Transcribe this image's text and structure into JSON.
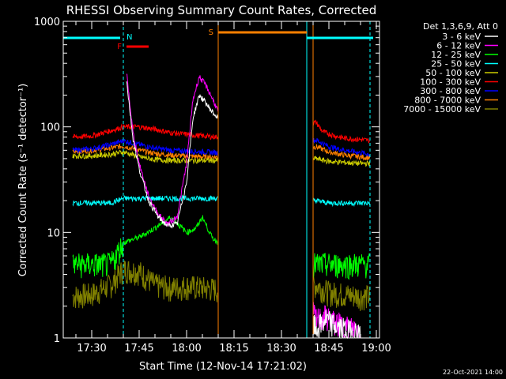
{
  "chart_data": {
    "type": "line",
    "title": "RHESSI Observing Summary Count Rates, Corrected",
    "xlabel": "Start Time (12-Nov-14 17:21:02)",
    "ylabel": "Corrected Count Rate (s⁻¹ detector⁻¹)",
    "yscale": "log",
    "ylim": [
      1,
      1000
    ],
    "xlim": [
      "17:21",
      "19:01"
    ],
    "x_ticks": [
      "17:30",
      "17:45",
      "18:00",
      "18:15",
      "18:30",
      "18:45",
      "19:00"
    ],
    "y_ticks": [
      "1",
      "10",
      "100",
      "1000"
    ],
    "legend_title": "Det 1,3,6,9, Att 0",
    "legend_position": "right",
    "footer_date": "22-Oct-2021 14:00",
    "annotations": [
      {
        "label": "N",
        "color": "#00ffff",
        "range": [
          "17:21",
          "17:39"
        ],
        "level": "top"
      },
      {
        "label": "N",
        "color": "#00ffff",
        "range": [
          "18:38",
          "18:59"
        ],
        "level": "top"
      },
      {
        "label": "F",
        "color": "#ff0000",
        "range": [
          "17:41",
          "17:48"
        ],
        "level": "upper"
      },
      {
        "label": "S",
        "color": "#ff8000",
        "range": [
          "18:10",
          "18:38"
        ],
        "level": "top"
      }
    ],
    "vlines": [
      {
        "time": "17:40",
        "color": "#00ffff",
        "style": "dashed"
      },
      {
        "time": "18:10",
        "color": "#ff8000",
        "style": "solid"
      },
      {
        "time": "18:38",
        "color": "#00ffff",
        "style": "solid"
      },
      {
        "time": "18:40",
        "color": "#ff8000",
        "style": "solid"
      },
      {
        "time": "18:58",
        "color": "#00ffff",
        "style": "dashed"
      }
    ],
    "gap": [
      "18:10",
      "18:40"
    ],
    "series": [
      {
        "name": "3 - 6 keV",
        "color": "#ffffff",
        "x": [
          "17:41",
          "17:43",
          "17:45",
          "17:48",
          "17:51",
          "17:54",
          "17:57",
          "18:00",
          "18:02",
          "18:04",
          "18:06",
          "18:08",
          "18:10",
          "18:41",
          "18:44",
          "18:47",
          "18:50",
          "18:55"
        ],
        "y": [
          280,
          80,
          40,
          20,
          14,
          11.5,
          12,
          30,
          120,
          200,
          170,
          140,
          120,
          1.2,
          1.5,
          1.3,
          1.2,
          1.1
        ]
      },
      {
        "name": "6 - 12 keV",
        "color": "#ff00ff",
        "x": [
          "17:41",
          "17:43",
          "17:45",
          "17:48",
          "17:51",
          "17:54",
          "17:57",
          "18:00",
          "18:02",
          "18:04",
          "18:06",
          "18:08",
          "18:10",
          "18:41",
          "18:44",
          "18:47",
          "18:50",
          "18:55"
        ],
        "y": [
          330,
          90,
          45,
          22,
          15,
          12,
          14,
          45,
          180,
          300,
          250,
          190,
          140,
          1.5,
          1.6,
          1.4,
          1.3,
          1.2
        ]
      },
      {
        "name": "12 - 25 keV",
        "color": "#00ff00",
        "x": [
          "17:24",
          "17:30",
          "17:36",
          "17:40",
          "17:45",
          "17:50",
          "17:55",
          "18:00",
          "18:03",
          "18:05",
          "18:08",
          "18:10",
          "18:41",
          "18:45",
          "18:50",
          "18:55",
          "18:58"
        ],
        "y": [
          5,
          5,
          5,
          8,
          9,
          11,
          14,
          10,
          11,
          14,
          9,
          8,
          5,
          5,
          5,
          5,
          5
        ]
      },
      {
        "name": "25 - 50 keV",
        "color": "#00ffff",
        "x": [
          "17:24",
          "17:30",
          "17:36",
          "17:40",
          "17:45",
          "17:50",
          "17:55",
          "18:00",
          "18:05",
          "18:10",
          "18:41",
          "18:45",
          "18:50",
          "18:55",
          "18:58"
        ],
        "y": [
          19,
          19,
          19,
          21,
          21,
          21,
          21,
          21,
          21,
          21,
          20,
          19,
          19,
          19,
          19
        ]
      },
      {
        "name": "50 - 100 keV",
        "color": "#cccc00",
        "x": [
          "17:24",
          "17:30",
          "17:36",
          "17:40",
          "17:45",
          "17:50",
          "17:55",
          "18:00",
          "18:05",
          "18:10",
          "18:41",
          "18:45",
          "18:50",
          "18:55",
          "18:58"
        ],
        "y": [
          53,
          53,
          55,
          58,
          52,
          49,
          48,
          48,
          48,
          48,
          50,
          47,
          46,
          45,
          45
        ]
      },
      {
        "name": "100 - 300 keV",
        "color": "#ff0000",
        "x": [
          "17:24",
          "17:30",
          "17:36",
          "17:40",
          "17:45",
          "17:50",
          "17:55",
          "18:00",
          "18:05",
          "18:10",
          "18:41",
          "18:43",
          "18:47",
          "18:50",
          "18:55",
          "18:58"
        ],
        "y": [
          80,
          82,
          92,
          100,
          100,
          95,
          88,
          85,
          82,
          80,
          110,
          90,
          82,
          78,
          76,
          74
        ]
      },
      {
        "name": "300 - 800 keV",
        "color": "#0000ff",
        "x": [
          "17:24",
          "17:30",
          "17:36",
          "17:40",
          "17:45",
          "17:50",
          "17:55",
          "18:00",
          "18:05",
          "18:10",
          "18:41",
          "18:45",
          "18:50",
          "18:55",
          "18:58"
        ],
        "y": [
          60,
          62,
          68,
          74,
          68,
          63,
          60,
          59,
          58,
          57,
          75,
          65,
          60,
          57,
          55
        ]
      },
      {
        "name": "800 - 7000 keV",
        "color": "#ff8000",
        "x": [
          "17:24",
          "17:30",
          "17:36",
          "17:40",
          "17:45",
          "17:50",
          "17:55",
          "18:00",
          "18:05",
          "18:10",
          "18:41",
          "18:45",
          "18:50",
          "18:55",
          "18:58"
        ],
        "y": [
          58,
          60,
          63,
          66,
          60,
          56,
          54,
          53,
          52,
          52,
          65,
          58,
          54,
          52,
          51
        ]
      },
      {
        "name": "7000 - 15000 keV",
        "color": "#808000",
        "x": [
          "17:24",
          "17:30",
          "17:36",
          "17:40",
          "17:45",
          "17:50",
          "17:55",
          "18:00",
          "18:05",
          "18:10",
          "18:41",
          "18:45",
          "18:50",
          "18:55",
          "18:58"
        ],
        "y": [
          2.5,
          2.6,
          3.2,
          4.5,
          4.3,
          3.2,
          3.0,
          3.1,
          3.0,
          2.9,
          3.2,
          2.7,
          2.6,
          2.5,
          2.5
        ]
      }
    ]
  }
}
